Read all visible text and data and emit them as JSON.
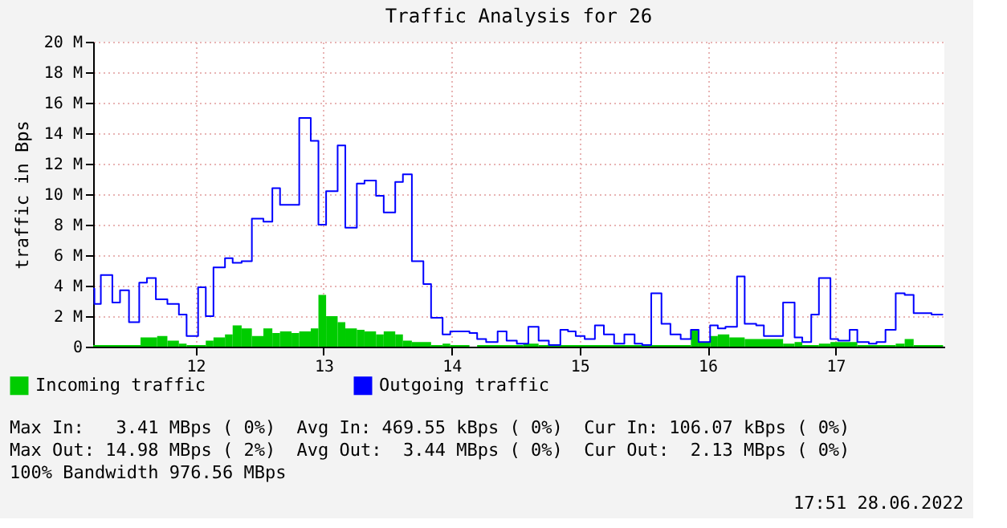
{
  "chart_data": {
    "type": "area",
    "title": "Traffic Analysis for 26",
    "ylabel": "traffic in Bps",
    "xlim": [
      11.2,
      17.85
    ],
    "xticks": [
      12,
      13,
      14,
      15,
      16,
      17
    ],
    "ylim": [
      0,
      20
    ],
    "yticks": [
      0,
      {
        "value": 2,
        "label": "2 M"
      },
      {
        "value": 4,
        "label": "4 M"
      },
      {
        "value": 6,
        "label": "6 M"
      },
      {
        "value": 8,
        "label": "8 M"
      },
      {
        "value": 10,
        "label": "10 M"
      },
      {
        "value": 12,
        "label": "12 M"
      },
      {
        "value": 14,
        "label": "14 M"
      },
      {
        "value": 16,
        "label": "16 M"
      },
      {
        "value": 18,
        "label": "18 M"
      },
      {
        "value": 20,
        "label": "20 M"
      }
    ],
    "grid": true,
    "legend": "bottom left",
    "series": [
      {
        "name": "Incoming traffic",
        "type": "area",
        "color": "#00cc00",
        "x": [
          11.2,
          11.57,
          11.7,
          11.78,
          11.87,
          11.93,
          12.08,
          12.14,
          12.23,
          12.29,
          12.36,
          12.44,
          12.53,
          12.6,
          12.66,
          12.75,
          12.81,
          12.9,
          12.96,
          13.02,
          13.11,
          13.17,
          13.26,
          13.32,
          13.41,
          13.47,
          13.56,
          13.62,
          13.69,
          13.84,
          13.93,
          13.99,
          14.14,
          14.2,
          14.56,
          14.68,
          15.87,
          15.93,
          16.02,
          16.08,
          16.17,
          16.29,
          16.59,
          16.68,
          16.74,
          16.87,
          16.96,
          17.17,
          17.47,
          17.54,
          17.61,
          17.84
        ],
        "values": [
          0.1,
          0.6,
          0.7,
          0.4,
          0.2,
          0.1,
          0.4,
          0.6,
          0.8,
          1.4,
          1.2,
          0.7,
          1.2,
          0.9,
          1.0,
          0.9,
          1.0,
          1.2,
          3.4,
          2.0,
          1.6,
          1.2,
          1.1,
          1.0,
          0.8,
          1.0,
          0.8,
          0.4,
          0.3,
          0.1,
          0.2,
          0.1,
          0,
          0.1,
          0.2,
          0.1,
          1.1,
          0.3,
          0.7,
          0.8,
          0.6,
          0.5,
          0.2,
          0.3,
          0.1,
          0.2,
          0.3,
          0.1,
          0.2,
          0.5,
          0.1,
          0.1
        ]
      },
      {
        "name": "Outgoing traffic",
        "type": "step",
        "color": "#0000ff",
        "x": [
          11.2,
          11.21,
          11.26,
          11.35,
          11.41,
          11.48,
          11.56,
          11.62,
          11.69,
          11.78,
          11.87,
          11.93,
          12.02,
          12.08,
          12.14,
          12.23,
          12.29,
          12.36,
          12.44,
          12.53,
          12.6,
          12.66,
          12.81,
          12.9,
          12.96,
          13.02,
          13.11,
          13.17,
          13.26,
          13.32,
          13.41,
          13.47,
          13.56,
          13.62,
          13.69,
          13.78,
          13.84,
          13.93,
          13.99,
          14.14,
          14.2,
          14.27,
          14.36,
          14.43,
          14.51,
          14.6,
          14.68,
          14.76,
          14.85,
          14.91,
          14.97,
          15.04,
          15.12,
          15.19,
          15.27,
          15.35,
          15.43,
          15.49,
          15.56,
          15.64,
          15.71,
          15.79,
          15.87,
          15.93,
          16.02,
          16.08,
          16.14,
          16.23,
          16.29,
          16.38,
          16.44,
          16.59,
          16.68,
          16.74,
          16.81,
          16.87,
          16.96,
          17.02,
          17.11,
          17.17,
          17.26,
          17.32,
          17.39,
          17.47,
          17.54,
          17.61,
          17.75,
          17.84
        ],
        "values": [
          3.8,
          2.8,
          4.7,
          2.9,
          3.7,
          1.6,
          4.2,
          4.5,
          3.1,
          2.8,
          2.1,
          0.7,
          3.9,
          2.0,
          5.2,
          5.8,
          5.5,
          5.6,
          8.4,
          8.2,
          10.4,
          9.3,
          15.0,
          13.5,
          8.0,
          10.2,
          13.2,
          7.8,
          10.7,
          10.9,
          9.9,
          8.8,
          10.8,
          11.3,
          5.6,
          4.1,
          1.9,
          0.8,
          1.0,
          0.9,
          0.5,
          0.3,
          1.0,
          0.4,
          0.2,
          1.3,
          0.4,
          0.1,
          1.1,
          1.0,
          0.7,
          0.5,
          1.4,
          0.8,
          0.2,
          0.8,
          0.2,
          0.1,
          3.5,
          1.5,
          0.8,
          0.5,
          1.1,
          0.3,
          1.4,
          1.2,
          1.3,
          4.6,
          1.5,
          1.4,
          0.7,
          2.9,
          0.6,
          0.3,
          2.1,
          4.5,
          0.5,
          0.4,
          1.1,
          0.3,
          0.2,
          0.3,
          1.1,
          3.5,
          3.4,
          2.2,
          2.1,
          2.1
        ]
      }
    ],
    "annotations": [
      "Max In:   3.41 MBps ( 0%)  Avg In: 469.55 kBps ( 0%)  Cur In: 106.07 kBps ( 0%)",
      "Max Out: 14.98 MBps ( 2%)  Avg Out:  3.44 MBps ( 0%)  Cur Out:  2.13 MBps ( 0%)",
      "100% Bandwidth 976.56 MBps",
      "17:51 28.06.2022"
    ]
  }
}
